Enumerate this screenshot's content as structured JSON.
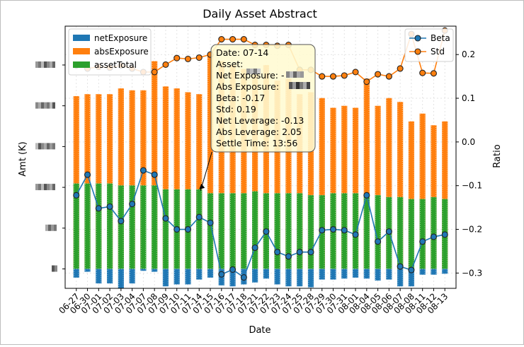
{
  "chart_data": {
    "type": "bar+line",
    "title": "Daily Asset Abstract",
    "xlabel": "Date",
    "ylabel_left": "Amt (K)",
    "ylabel_right": "Ratio",
    "left_ylim": [
      -1.0,
      12.5
    ],
    "right_ylim": [
      -0.335,
      0.265
    ],
    "right_ticks": [
      0.2,
      0.1,
      0.0,
      -0.1,
      -0.2,
      -0.3
    ],
    "right_tick_labels": [
      "0.2",
      "0.1",
      "0.0",
      "−0.1",
      "−0.2",
      "−0.3"
    ],
    "left_ticks_redacted": [
      10.5,
      8.4,
      6.3,
      4.2,
      2.1,
      0.0
    ],
    "grid": true,
    "categories": [
      "06-27",
      "06-30",
      "07-01",
      "07-02",
      "07-03",
      "07-04",
      "07-07",
      "07-08",
      "07-09",
      "07-10",
      "07-11",
      "07-14",
      "07-15",
      "07-16",
      "07-17",
      "07-18",
      "07-21",
      "07-22",
      "07-23",
      "07-24",
      "07-25",
      "07-28",
      "07-29",
      "07-30",
      "07-31",
      "08-01",
      "08-04",
      "08-05",
      "08-06",
      "08-07",
      "08-08",
      "08-11",
      "08-12",
      "08-13"
    ],
    "series": [
      {
        "name": "netExposure",
        "kind": "bar",
        "color": "#1f77b4",
        "values": [
          -0.45,
          -0.15,
          -0.75,
          -0.75,
          -1.0,
          -0.75,
          -0.1,
          -0.15,
          -0.9,
          -0.8,
          -0.8,
          -0.55,
          -0.45,
          -0.85,
          -0.9,
          -0.8,
          -0.7,
          -0.5,
          -0.8,
          -0.9,
          -0.9,
          -0.95,
          -0.55,
          -0.55,
          -0.5,
          -0.45,
          -0.5,
          -0.6,
          -0.55,
          -0.9,
          -0.9,
          -0.3,
          -0.3,
          -0.25
        ]
      },
      {
        "name": "absExposure",
        "kind": "bar",
        "color": "#ff7f0e",
        "values": [
          8.9,
          9.0,
          9.0,
          9.0,
          9.3,
          9.2,
          9.2,
          10.7,
          9.4,
          9.3,
          9.1,
          9.0,
          11.1,
          10.7,
          10.5,
          10.3,
          10.0,
          10.5,
          9.7,
          9.8,
          9.0,
          9.1,
          8.8,
          8.3,
          8.4,
          8.3,
          9.8,
          8.4,
          8.8,
          8.6,
          7.6,
          8.0,
          7.4,
          7.6
        ]
      },
      {
        "name": "assetTotal",
        "kind": "bar",
        "color": "#2ca02c",
        "values": [
          4.4,
          4.4,
          4.4,
          4.4,
          4.3,
          4.3,
          4.3,
          4.3,
          4.1,
          4.1,
          4.1,
          4.1,
          3.9,
          3.9,
          3.9,
          3.9,
          4.0,
          3.9,
          3.9,
          3.9,
          3.9,
          3.8,
          3.8,
          3.9,
          3.9,
          3.9,
          3.8,
          3.8,
          3.7,
          3.7,
          3.6,
          3.6,
          3.7,
          3.6
        ]
      },
      {
        "name": "Beta",
        "kind": "line",
        "axis": "right",
        "color": "#1f77b4",
        "values": [
          -0.122,
          -0.075,
          -0.152,
          -0.148,
          -0.181,
          -0.142,
          -0.065,
          -0.075,
          -0.175,
          -0.2,
          -0.2,
          -0.172,
          -0.185,
          -0.303,
          -0.292,
          -0.31,
          -0.242,
          -0.205,
          -0.252,
          -0.262,
          -0.252,
          -0.252,
          -0.202,
          -0.2,
          -0.202,
          -0.212,
          -0.122,
          -0.228,
          -0.205,
          -0.285,
          -0.293,
          -0.228,
          -0.217,
          -0.212
        ]
      },
      {
        "name": "Std",
        "kind": "line",
        "axis": "right",
        "color": "#ff7f0e",
        "values": [
          0.175,
          0.168,
          0.172,
          0.17,
          0.175,
          0.168,
          0.16,
          0.16,
          0.177,
          0.192,
          0.19,
          0.193,
          0.2,
          0.235,
          0.235,
          0.235,
          0.222,
          0.222,
          0.22,
          0.222,
          0.165,
          0.165,
          0.15,
          0.15,
          0.152,
          0.16,
          0.138,
          0.155,
          0.15,
          0.168,
          0.247,
          0.158,
          0.157,
          0.255
        ]
      }
    ],
    "legend_left": [
      {
        "label": "netExposure",
        "color": "#1f77b4"
      },
      {
        "label": "absExposure",
        "color": "#ff7f0e"
      },
      {
        "label": "assetTotal",
        "color": "#2ca02c"
      }
    ],
    "legend_right": [
      {
        "label": "Beta",
        "color": "#1f77b4"
      },
      {
        "label": "Std",
        "color": "#ff7f0e"
      }
    ],
    "tooltip": {
      "target_index": 11,
      "lines": [
        "Date: 07-14",
        "Asset: ",
        "Net Exposure: -",
        "Abs Exposure: ",
        "Beta: -0.17",
        "Std: 0.19",
        "Net Leverage: -0.13",
        "Abs Leverage: 2.05",
        "Settle Time: 13:56"
      ]
    }
  }
}
